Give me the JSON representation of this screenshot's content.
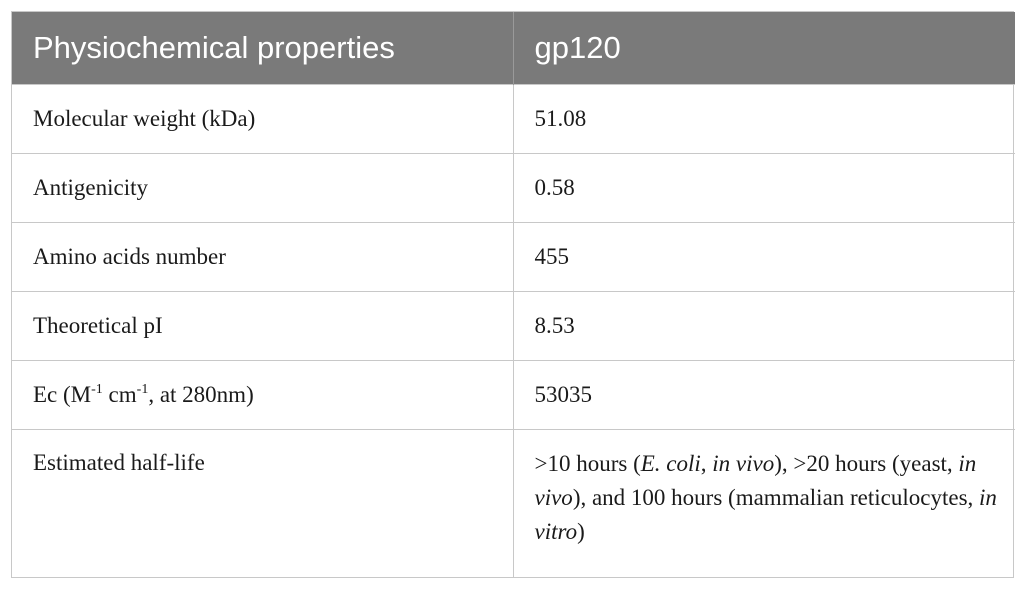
{
  "table": {
    "headers": [
      "Physiochemical properties",
      "gp120"
    ],
    "rows": [
      {
        "property": "Molecular weight (kDa)",
        "value": "51.08"
      },
      {
        "property": "Antigenicity",
        "value": "0.58"
      },
      {
        "property": "Amino acids number",
        "value": "455"
      },
      {
        "property": "Theoretical pI",
        "value": "8.53"
      },
      {
        "property_parts": {
          "a": "Ec (M",
          "sup1": "-1",
          "b": " cm",
          "sup2": "-1",
          "c": ", at 280nm)"
        },
        "value": "53035"
      },
      {
        "property": "Estimated half-life",
        "value_parts": {
          "t1": ">10 hours (",
          "i1": "E. coli",
          "t2": ", ",
          "i2": "in vivo",
          "t3": "), >20 hours (yeast, ",
          "i3": "in vivo",
          "t4": "), and 100 hours (mammalian reticulocytes, ",
          "i4": "in vitro",
          "t5": ")"
        }
      }
    ]
  }
}
